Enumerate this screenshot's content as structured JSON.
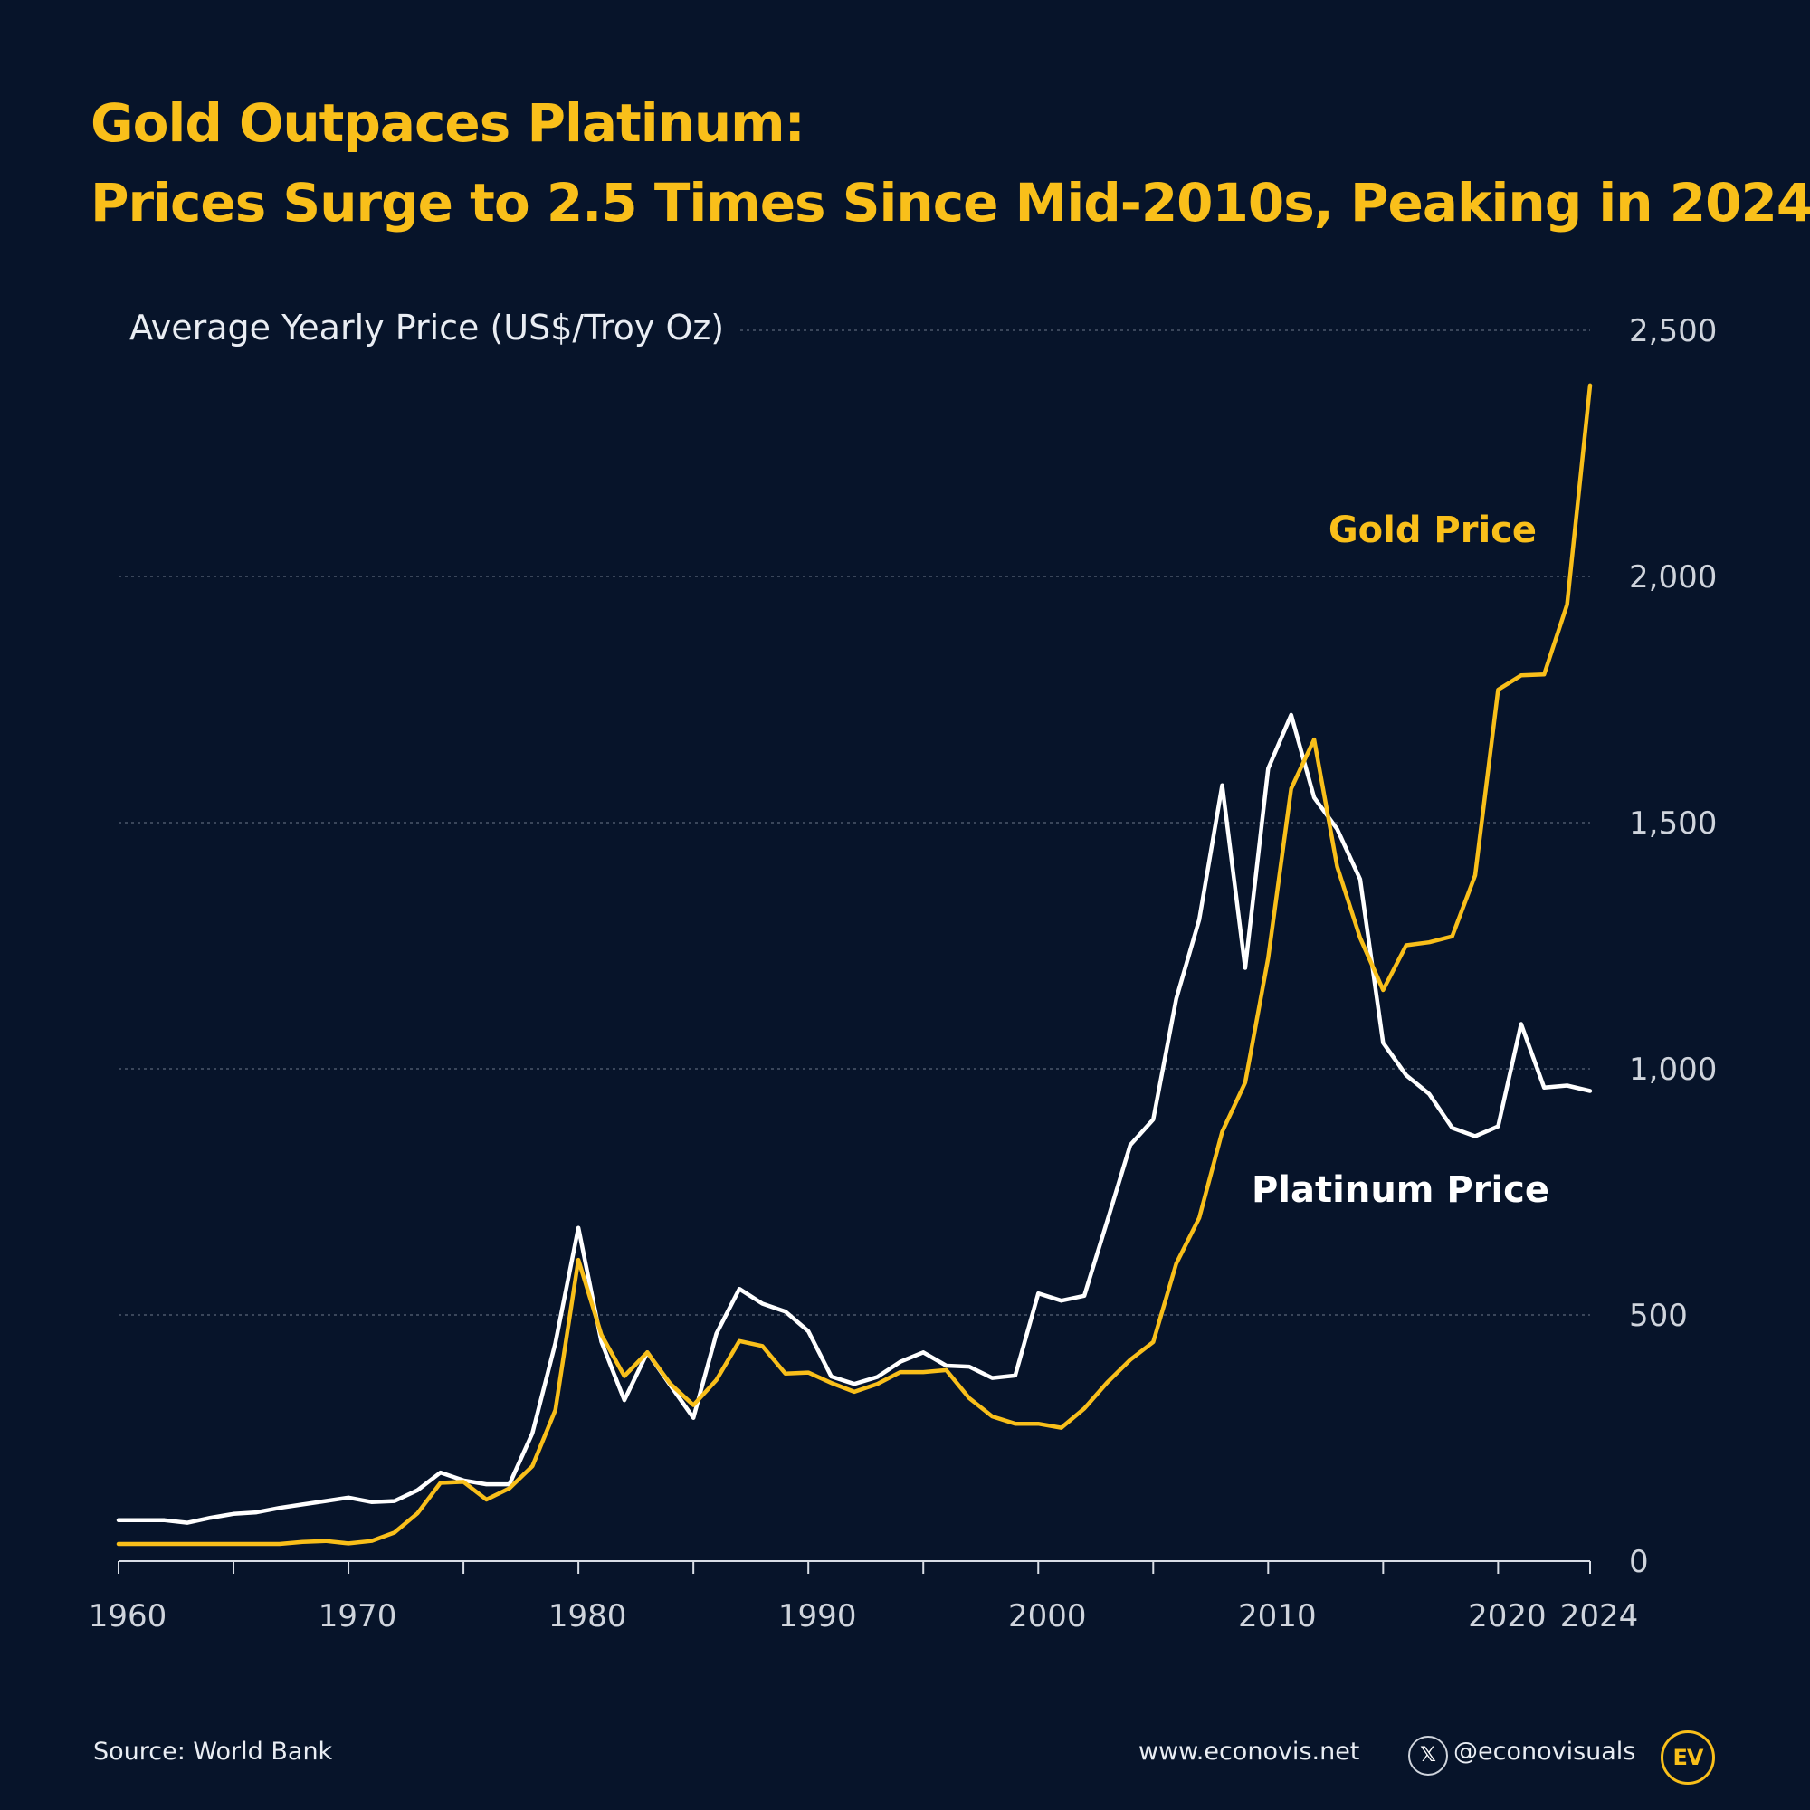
{
  "title": {
    "line1": "Gold Outpaces Platinum:",
    "line2": "Prices Surge to 2.5 Times Since Mid-2010s, Peaking in 2024"
  },
  "chart_data": {
    "type": "line",
    "ylabel": "Average Yearly Price (US$/Troy Oz)",
    "ylim": [
      0,
      2500
    ],
    "yticks": [
      "0",
      "500",
      "1,000",
      "1,500",
      "2,000",
      "2,500"
    ],
    "xlim": [
      1960,
      2024
    ],
    "xtick_labels": [
      "1960",
      "1970",
      "1980",
      "1990",
      "2000",
      "2010",
      "2020",
      "2024"
    ],
    "x": [
      1960,
      1961,
      1962,
      1963,
      1964,
      1965,
      1966,
      1967,
      1968,
      1969,
      1970,
      1971,
      1972,
      1973,
      1974,
      1975,
      1976,
      1977,
      1978,
      1979,
      1980,
      1981,
      1982,
      1983,
      1984,
      1985,
      1986,
      1987,
      1988,
      1989,
      1990,
      1991,
      1992,
      1993,
      1994,
      1995,
      1996,
      1997,
      1998,
      1999,
      2000,
      2001,
      2002,
      2003,
      2004,
      2005,
      2006,
      2007,
      2008,
      2009,
      2010,
      2011,
      2012,
      2013,
      2014,
      2015,
      2016,
      2017,
      2018,
      2019,
      2020,
      2021,
      2022,
      2023,
      2024
    ],
    "series": [
      {
        "name": "Gold Price",
        "color": "#f9bf1a",
        "values": [
          35,
          35,
          35,
          35,
          35,
          35,
          35,
          35,
          39,
          41,
          36,
          41,
          58,
          97,
          159,
          161,
          125,
          148,
          193,
          307,
          612,
          460,
          376,
          424,
          360,
          317,
          368,
          447,
          437,
          381,
          383,
          362,
          344,
          360,
          384,
          384,
          388,
          331,
          294,
          279,
          279,
          271,
          310,
          363,
          409,
          445,
          604,
          697,
          872,
          972,
          1225,
          1569,
          1669,
          1411,
          1266,
          1160,
          1251,
          1257,
          1269,
          1393,
          1770,
          1799,
          1801,
          1943,
          2388
        ]
      },
      {
        "name": "Platinum Price",
        "color": "#ffffff",
        "values": [
          83,
          83,
          83,
          78,
          88,
          96,
          99,
          108,
          115,
          122,
          129,
          120,
          122,
          144,
          180,
          164,
          156,
          156,
          260,
          443,
          677,
          446,
          327,
          424,
          357,
          291,
          462,
          553,
          523,
          507,
          467,
          375,
          360,
          374,
          405,
          424,
          397,
          395,
          372,
          377,
          544,
          529,
          539,
          691,
          845,
          897,
          1142,
          1303,
          1576,
          1205,
          1610,
          1719,
          1551,
          1487,
          1385,
          1053,
          987,
          949,
          880,
          863,
          883,
          1091,
          962,
          966,
          955
        ]
      }
    ],
    "annotations": [
      "Gold Price",
      "Platinum Price"
    ]
  },
  "footer": {
    "source": "Source: World Bank",
    "website": "www.econovis.net",
    "x_glyph": "𝕏",
    "handle": "@econovisuals",
    "logo_text": "EV"
  }
}
